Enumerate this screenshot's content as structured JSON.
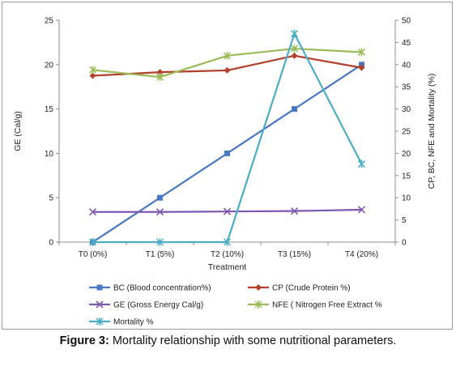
{
  "caption": {
    "label": "Figure 3:",
    "text": " Mortality relationship with some nutritional parameters."
  },
  "chart_data": {
    "type": "line",
    "categories": [
      "T0 (0%)",
      "T1 (5%)",
      "T2 (10%)",
      "T3 (15%)",
      "T4 (20%)"
    ],
    "xlabel": "Treatment",
    "ylabel_left": "GE (Cal/g)",
    "ylabel_right": "CP, BC, NFE and Mortality (%)",
    "ylim_left": [
      0,
      25
    ],
    "yticks_left": [
      0,
      5,
      10,
      15,
      20,
      25
    ],
    "ylim_right": [
      0,
      50
    ],
    "yticks_right": [
      0,
      5,
      10,
      15,
      20,
      25,
      30,
      35,
      40,
      45,
      50
    ],
    "grid": false,
    "legend_position": "bottom",
    "series": [
      {
        "name": "BC (Blood concentration%)",
        "axis": "right",
        "color": "#4a78c0",
        "marker": "square",
        "values": [
          0,
          10,
          20,
          30,
          40
        ]
      },
      {
        "name": "CP (Crude Protein %)",
        "axis": "right",
        "color": "#b2402a",
        "marker": "diamond",
        "values": [
          37.5,
          38.3,
          38.7,
          42,
          39.3
        ]
      },
      {
        "name": "GE (Gross Energy Cal/g)",
        "axis": "left",
        "color": "#7e57b0",
        "marker": "x",
        "values": [
          3.4,
          3.4,
          3.45,
          3.5,
          3.65
        ]
      },
      {
        "name": "NFE ( Nitrogen Free Extract %",
        "axis": "right",
        "color": "#9bbb59",
        "marker": "star",
        "values": [
          38.8,
          37.2,
          42,
          43.6,
          42.8
        ]
      },
      {
        "name": "Mortality %",
        "axis": "right",
        "color": "#4bacc6",
        "marker": "star",
        "values": [
          0,
          0,
          0,
          47,
          17.6
        ]
      }
    ]
  }
}
